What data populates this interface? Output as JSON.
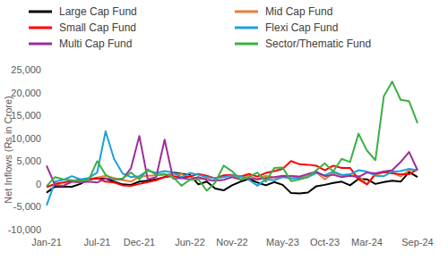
{
  "chart_data": {
    "type": "line",
    "y_label": "Net Inflows (Rs in Crore)",
    "categories": [
      "Jan-21",
      null,
      null,
      null,
      null,
      null,
      "Jul-21",
      null,
      null,
      null,
      null,
      "Dec-21",
      null,
      null,
      null,
      null,
      null,
      "Jun-22",
      null,
      null,
      null,
      null,
      "Nov-22",
      null,
      null,
      null,
      null,
      null,
      "May-23",
      null,
      null,
      null,
      null,
      "Oct-23",
      null,
      null,
      null,
      null,
      "Mar-24",
      null,
      null,
      null,
      null,
      null,
      "Sep-24"
    ],
    "series": [
      {
        "name": "Large Cap Fund",
        "color": "#000000",
        "values": [
          -1900,
          -600,
          -600,
          -600,
          0,
          1000,
          1200,
          1200,
          500,
          -100,
          -200,
          500,
          700,
          1000,
          1500,
          2500,
          2200,
          2000,
          -100,
          500,
          -1000,
          -1400,
          -300,
          500,
          1100,
          300,
          -300,
          400,
          -200,
          -2000,
          -2100,
          -1900,
          -500,
          -200,
          200,
          500,
          -300,
          1100,
          1000,
          0,
          400,
          700,
          500,
          2600,
          1500
        ]
      },
      {
        "name": "Mid Cap Fund",
        "color": "#ed7d31",
        "values": [
          -600,
          -100,
          -400,
          600,
          400,
          1000,
          1400,
          1800,
          1300,
          900,
          500,
          1600,
          1800,
          1900,
          2000,
          2200,
          2100,
          1700,
          1000,
          1400,
          1300,
          1600,
          1900,
          1700,
          1800,
          1000,
          1800,
          1400,
          1500,
          1800,
          1600,
          1900,
          2500,
          1000,
          2400,
          1900,
          1900,
          1800,
          -100,
          2000,
          2500,
          2600,
          1600,
          3000,
          3100
        ]
      },
      {
        "name": "Small Cap Fund",
        "color": "#ff0000",
        "values": [
          -700,
          0,
          300,
          700,
          900,
          1000,
          1300,
          500,
          300,
          -300,
          -400,
          0,
          400,
          800,
          1500,
          1700,
          1500,
          1600,
          2200,
          1800,
          1200,
          1900,
          2000,
          1600,
          2200,
          1600,
          2400,
          2800,
          3300,
          5000,
          4300,
          4200,
          4000,
          3000,
          4000,
          3500,
          3500,
          1000,
          -100,
          2200,
          2600,
          2300,
          2100,
          2100,
          3200
        ]
      },
      {
        "name": "Flexi Cap Fund",
        "color": "#1ca0dc",
        "values": [
          -4700,
          500,
          900,
          1700,
          1000,
          1300,
          2500,
          11500,
          5500,
          2300,
          1500,
          1700,
          2900,
          2400,
          2800,
          2500,
          1500,
          2400,
          2000,
          1500,
          1300,
          1500,
          1900,
          1700,
          900,
          -400,
          1000,
          800,
          1500,
          1200,
          1300,
          1500,
          2400,
          1900,
          2700,
          2000,
          2100,
          3000,
          2700,
          1800,
          1700,
          2700,
          2800,
          3300,
          3000
        ]
      },
      {
        "name": "Multi Cap Fund",
        "color": "#9b2e9b",
        "values": [
          4000,
          -300,
          -400,
          500,
          300,
          500,
          300,
          1200,
          1000,
          1000,
          3400,
          10500,
          1000,
          1500,
          9700,
          1200,
          1300,
          1000,
          1500,
          900,
          700,
          900,
          1500,
          1000,
          1200,
          1000,
          1300,
          1500,
          1800,
          1700,
          1600,
          2200,
          2700,
          1700,
          2000,
          1500,
          1800,
          1500,
          2500,
          2300,
          2700,
          3000,
          4800,
          7000,
          3000
        ]
      },
      {
        "name": "Sector/Thematic Fund",
        "color": "#3cb043",
        "values": [
          -500,
          1500,
          1000,
          800,
          600,
          900,
          5000,
          2000,
          900,
          1200,
          2500,
          1000,
          3200,
          2000,
          2200,
          1500,
          -400,
          900,
          1000,
          -1500,
          300,
          4000,
          2800,
          900,
          1500,
          2500,
          500,
          3500,
          3600,
          600,
          1000,
          1500,
          3000,
          4500,
          2700,
          5500,
          4800,
          11000,
          7300,
          5200,
          19200,
          22400,
          18400,
          18100,
          13300
        ]
      }
    ],
    "ylim": [
      -10000,
      25000
    ],
    "yticks": [
      {
        "value": -10000,
        "label": "-10,000"
      },
      {
        "value": -5000,
        "label": "-5,000"
      },
      0,
      {
        "value": 5000,
        "label": "5,000"
      },
      {
        "value": 10000,
        "label": "10,000"
      },
      {
        "value": 15000,
        "label": "15,000"
      },
      {
        "value": 20000,
        "label": "20,000"
      },
      {
        "value": 25000,
        "label": "25,000"
      }
    ],
    "grid": false,
    "legend": "top"
  }
}
